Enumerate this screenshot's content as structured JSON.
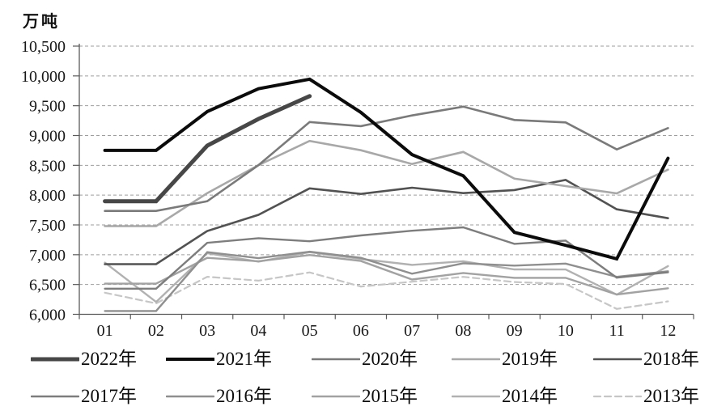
{
  "chart_data": {
    "type": "line",
    "title": "",
    "ylabel": "万吨",
    "xlabel": "",
    "ylim": [
      6000,
      10500
    ],
    "ytick_step": 500,
    "ytick_labels": [
      "10,500",
      "10,000",
      "9,500",
      "9,000",
      "8,500",
      "8,000",
      "7,500",
      "7,000",
      "6,500",
      "6,000"
    ],
    "x_categories": [
      "01",
      "02",
      "03",
      "04",
      "05",
      "06",
      "07",
      "08",
      "09",
      "10",
      "11",
      "12"
    ],
    "grid": "horizontal-dashed",
    "legend_position": "bottom",
    "series": [
      {
        "name": "2022年",
        "color": "#474747",
        "width": 5,
        "dash": null,
        "values": [
          7898,
          7898,
          8830,
          9278,
          9661,
          null,
          null,
          null,
          null,
          null,
          null,
          null
        ]
      },
      {
        "name": "2021年",
        "color": "#0b0b0b",
        "width": 4,
        "dash": null,
        "values": [
          8750,
          8750,
          9402,
          9785,
          9945,
          9388,
          8679,
          8324,
          7375,
          7158,
          6931,
          8619
        ]
      },
      {
        "name": "2020年",
        "color": "#7a7a7a",
        "width": 2.6,
        "dash": null,
        "values": [
          7735,
          7735,
          7898,
          8503,
          9227,
          9158,
          9336,
          9485,
          9261,
          9220,
          8766,
          9125
        ]
      },
      {
        "name": "2019年",
        "color": "#a8a8a8",
        "width": 2.6,
        "dash": null,
        "values": [
          7479,
          7479,
          8033,
          8503,
          8909,
          8753,
          8522,
          8725,
          8277,
          8152,
          8029,
          8427
        ]
      },
      {
        "name": "2018年",
        "color": "#525252",
        "width": 2.6,
        "dash": null,
        "values": [
          6841,
          6841,
          7398,
          7670,
          8113,
          8020,
          8124,
          8033,
          8085,
          8255,
          7762,
          7612
        ]
      },
      {
        "name": "2017年",
        "color": "#7d7d7d",
        "width": 2.4,
        "dash": null,
        "values": [
          6430,
          6430,
          7200,
          7278,
          7226,
          7323,
          7402,
          7459,
          7183,
          7236,
          6615,
          6705
        ]
      },
      {
        "name": "2016年",
        "color": "#8f8f8f",
        "width": 2.4,
        "dash": null,
        "values": [
          6055,
          6055,
          7043,
          6942,
          7050,
          6947,
          6681,
          6857,
          6817,
          6851,
          6629,
          6722
        ]
      },
      {
        "name": "2015年",
        "color": "#a2a2a2",
        "width": 2.4,
        "dash": null,
        "values": [
          6515,
          6515,
          6948,
          6891,
          6995,
          6895,
          6584,
          6694,
          6612,
          6612,
          6332,
          6437
        ]
      },
      {
        "name": "2014年",
        "color": "#b1b1b1",
        "width": 2.4,
        "dash": null,
        "values": [
          6867,
          6208,
          7025,
          6884,
          7043,
          6929,
          6830,
          6891,
          6754,
          6752,
          6330,
          6809
        ]
      },
      {
        "name": "2013年",
        "color": "#c6c6c6",
        "width": 2.2,
        "dash": "8 5",
        "values": [
          6362,
          6183,
          6630,
          6565,
          6703,
          6466,
          6547,
          6628,
          6542,
          6509,
          6091,
          6217
        ]
      }
    ]
  }
}
